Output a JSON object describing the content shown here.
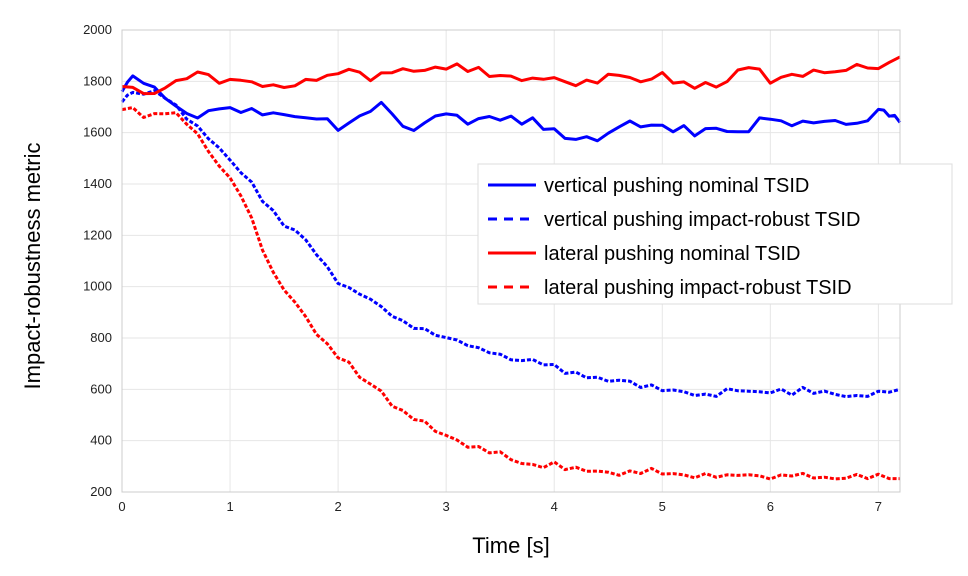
{
  "chart_data": {
    "type": "line",
    "title": "",
    "xlabel": "Time [s]",
    "ylabel": "Impact-robustness metric",
    "xlim": [
      0,
      7.2
    ],
    "ylim": [
      200,
      2000
    ],
    "xticks": [
      0,
      1,
      2,
      3,
      4,
      5,
      6,
      7
    ],
    "yticks": [
      200,
      400,
      600,
      800,
      1000,
      1200,
      1400,
      1600,
      1800,
      2000
    ],
    "grid": true,
    "legend_position": "middle-right",
    "series": [
      {
        "name": "vertical pushing nominal TSID",
        "color": "#0000ff",
        "dash": "solid",
        "x": [
          0,
          0.05,
          0.1,
          0.2,
          0.3,
          0.4,
          0.5,
          0.6,
          0.7,
          0.8,
          0.9,
          1.0,
          1.1,
          1.2,
          1.3,
          1.4,
          1.5,
          1.6,
          1.7,
          1.8,
          1.9,
          2.0,
          2.1,
          2.2,
          2.3,
          2.4,
          2.5,
          2.6,
          2.7,
          2.8,
          2.9,
          3.0,
          3.1,
          3.2,
          3.3,
          3.4,
          3.5,
          3.6,
          3.7,
          3.8,
          3.9,
          4.0,
          4.1,
          4.2,
          4.3,
          4.4,
          4.5,
          4.6,
          4.7,
          4.8,
          4.9,
          5.0,
          5.1,
          5.2,
          5.3,
          5.4,
          5.5,
          5.6,
          5.7,
          5.8,
          5.9,
          6.0,
          6.1,
          6.2,
          6.3,
          6.4,
          6.5,
          6.6,
          6.7,
          6.8,
          6.9,
          7.0,
          7.05,
          7.1,
          7.15,
          7.2
        ],
        "y": [
          1760,
          1800,
          1815,
          1800,
          1770,
          1740,
          1700,
          1675,
          1660,
          1680,
          1700,
          1690,
          1685,
          1690,
          1670,
          1680,
          1665,
          1670,
          1650,
          1660,
          1650,
          1610,
          1640,
          1660,
          1690,
          1710,
          1680,
          1620,
          1610,
          1640,
          1660,
          1680,
          1660,
          1640,
          1650,
          1665,
          1650,
          1660,
          1640,
          1650,
          1620,
          1610,
          1580,
          1575,
          1580,
          1575,
          1590,
          1630,
          1640,
          1625,
          1630,
          1625,
          1610,
          1620,
          1595,
          1610,
          1620,
          1605,
          1600,
          1610,
          1650,
          1660,
          1640,
          1630,
          1645,
          1635,
          1650,
          1640,
          1640,
          1630,
          1650,
          1690,
          1685,
          1670,
          1660,
          1640
        ]
      },
      {
        "name": "vertical pushing impact-robust TSID",
        "color": "#0000ff",
        "dash": "dashed",
        "x": [
          0,
          0.05,
          0.1,
          0.2,
          0.3,
          0.4,
          0.5,
          0.6,
          0.7,
          0.8,
          0.9,
          1.0,
          1.1,
          1.2,
          1.3,
          1.4,
          1.5,
          1.6,
          1.7,
          1.8,
          1.9,
          2.0,
          2.1,
          2.2,
          2.3,
          2.4,
          2.5,
          2.6,
          2.7,
          2.8,
          2.9,
          3.0,
          3.1,
          3.2,
          3.3,
          3.4,
          3.5,
          3.6,
          3.7,
          3.8,
          3.9,
          4.0,
          4.1,
          4.2,
          4.3,
          4.4,
          4.5,
          4.6,
          4.7,
          4.8,
          4.9,
          5.0,
          5.1,
          5.2,
          5.3,
          5.4,
          5.5,
          5.6,
          5.7,
          5.8,
          5.9,
          6.0,
          6.1,
          6.2,
          6.3,
          6.4,
          6.5,
          6.6,
          6.7,
          6.8,
          6.9,
          7.0,
          7.1,
          7.2
        ],
        "y": [
          1720,
          1740,
          1760,
          1750,
          1760,
          1740,
          1700,
          1660,
          1620,
          1580,
          1540,
          1490,
          1450,
          1400,
          1340,
          1290,
          1240,
          1220,
          1180,
          1130,
          1070,
          1020,
          990,
          975,
          950,
          920,
          890,
          860,
          845,
          830,
          815,
          800,
          790,
          775,
          755,
          750,
          730,
          720,
          710,
          715,
          700,
          690,
          670,
          660,
          650,
          645,
          630,
          640,
          625,
          615,
          610,
          600,
          595,
          590,
          580,
          575,
          580,
          595,
          600,
          590,
          590,
          590,
          595,
          585,
          600,
          590,
          590,
          580,
          575,
          570,
          580,
          585,
          595,
          600
        ]
      },
      {
        "name": "lateral pushing nominal TSID",
        "color": "#ff0000",
        "dash": "solid",
        "x": [
          0,
          0.1,
          0.2,
          0.3,
          0.4,
          0.5,
          0.6,
          0.7,
          0.8,
          0.9,
          1.0,
          1.1,
          1.2,
          1.3,
          1.4,
          1.5,
          1.6,
          1.7,
          1.8,
          1.9,
          2.0,
          2.1,
          2.2,
          2.3,
          2.4,
          2.5,
          2.6,
          2.7,
          2.8,
          2.9,
          3.0,
          3.1,
          3.2,
          3.3,
          3.4,
          3.5,
          3.6,
          3.7,
          3.8,
          3.9,
          4.0,
          4.1,
          4.2,
          4.3,
          4.4,
          4.5,
          4.6,
          4.7,
          4.8,
          4.9,
          5.0,
          5.1,
          5.2,
          5.3,
          5.4,
          5.5,
          5.6,
          5.7,
          5.8,
          5.9,
          6.0,
          6.1,
          6.2,
          6.3,
          6.4,
          6.5,
          6.6,
          6.7,
          6.8,
          6.9,
          7.0,
          7.1,
          7.2
        ],
        "y": [
          1780,
          1770,
          1760,
          1745,
          1780,
          1800,
          1810,
          1840,
          1820,
          1800,
          1800,
          1810,
          1795,
          1780,
          1790,
          1770,
          1790,
          1800,
          1810,
          1820,
          1830,
          1850,
          1830,
          1810,
          1825,
          1840,
          1845,
          1840,
          1845,
          1850,
          1855,
          1860,
          1845,
          1850,
          1820,
          1825,
          1815,
          1810,
          1805,
          1815,
          1810,
          1800,
          1785,
          1800,
          1800,
          1820,
          1830,
          1810,
          1800,
          1810,
          1830,
          1800,
          1790,
          1780,
          1790,
          1780,
          1800,
          1840,
          1860,
          1840,
          1800,
          1810,
          1830,
          1820,
          1840,
          1840,
          1830,
          1850,
          1860,
          1855,
          1850,
          1870,
          1895
        ]
      },
      {
        "name": "lateral pushing impact-robust TSID",
        "color": "#ff0000",
        "dash": "dashed",
        "x": [
          0,
          0.1,
          0.2,
          0.3,
          0.4,
          0.5,
          0.6,
          0.7,
          0.8,
          0.9,
          1.0,
          1.1,
          1.2,
          1.3,
          1.4,
          1.5,
          1.6,
          1.7,
          1.8,
          1.9,
          2.0,
          2.1,
          2.2,
          2.3,
          2.4,
          2.5,
          2.6,
          2.7,
          2.8,
          2.9,
          3.0,
          3.1,
          3.2,
          3.3,
          3.4,
          3.5,
          3.6,
          3.7,
          3.8,
          3.9,
          4.0,
          4.1,
          4.2,
          4.3,
          4.4,
          4.5,
          4.6,
          4.7,
          4.8,
          4.9,
          5.0,
          5.1,
          5.2,
          5.3,
          5.4,
          5.5,
          5.6,
          5.7,
          5.8,
          5.9,
          6.0,
          6.1,
          6.2,
          6.3,
          6.4,
          6.5,
          6.6,
          6.7,
          6.8,
          6.9,
          7.0,
          7.1,
          7.2
        ],
        "y": [
          1690,
          1700,
          1660,
          1670,
          1680,
          1670,
          1640,
          1590,
          1530,
          1470,
          1420,
          1360,
          1260,
          1150,
          1050,
          990,
          940,
          880,
          820,
          770,
          730,
          700,
          650,
          620,
          590,
          540,
          510,
          490,
          470,
          440,
          420,
          400,
          380,
          370,
          360,
          350,
          330,
          310,
          305,
          300,
          310,
          295,
          290,
          285,
          280,
          275,
          270,
          275,
          280,
          285,
          275,
          270,
          265,
          260,
          265,
          265,
          260,
          270,
          265,
          262,
          255,
          260,
          270,
          265,
          260,
          255,
          250,
          258,
          262,
          260,
          262,
          258,
          252
        ]
      }
    ]
  }
}
